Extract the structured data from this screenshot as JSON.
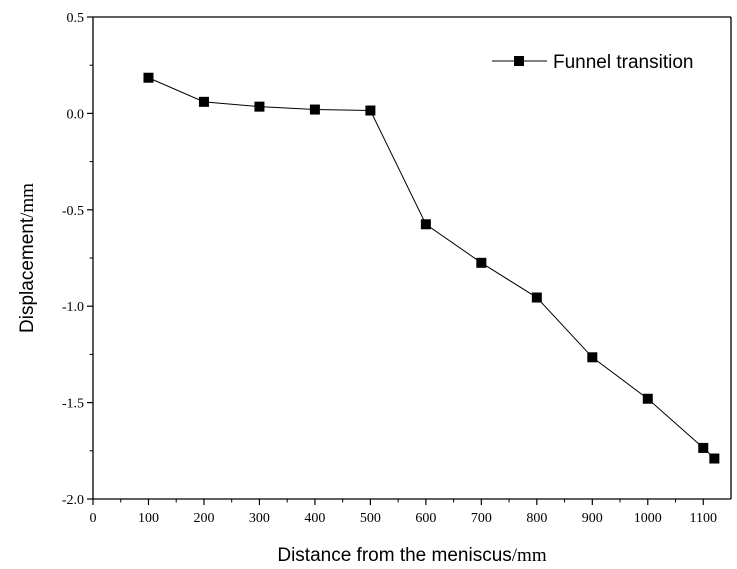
{
  "chart_data": {
    "type": "line",
    "title": "",
    "xlabel": "Distance from the meniscus",
    "xlabel_unit": "/mm",
    "ylabel": "Displacement",
    "ylabel_unit": "/mm",
    "xlim": [
      0,
      1150
    ],
    "ylim": [
      -2.0,
      0.5
    ],
    "x_ticks": [
      0,
      100,
      200,
      300,
      400,
      500,
      600,
      700,
      800,
      900,
      1000,
      1100
    ],
    "x_tick_labels": [
      "0",
      "100",
      "200",
      "300",
      "400",
      "500",
      "600",
      "700",
      "800",
      "900",
      "1000",
      "1100"
    ],
    "y_ticks": [
      -2.0,
      -1.5,
      -1.0,
      -0.5,
      0.0,
      0.5
    ],
    "y_tick_labels": [
      "-2.0",
      "-1.5",
      "-1.0",
      "-0.5",
      "0.0",
      "0.5"
    ],
    "grid": false,
    "legend_position": "top-right",
    "series": [
      {
        "name": "Funnel transition",
        "color": "#000000",
        "marker": "square",
        "x": [
          100,
          200,
          300,
          400,
          500,
          600,
          700,
          800,
          900,
          1000,
          1100,
          1120
        ],
        "y": [
          0.185,
          0.06,
          0.035,
          0.02,
          0.015,
          -0.575,
          -0.775,
          -0.955,
          -1.265,
          -1.48,
          -1.735,
          -1.79
        ]
      }
    ]
  }
}
